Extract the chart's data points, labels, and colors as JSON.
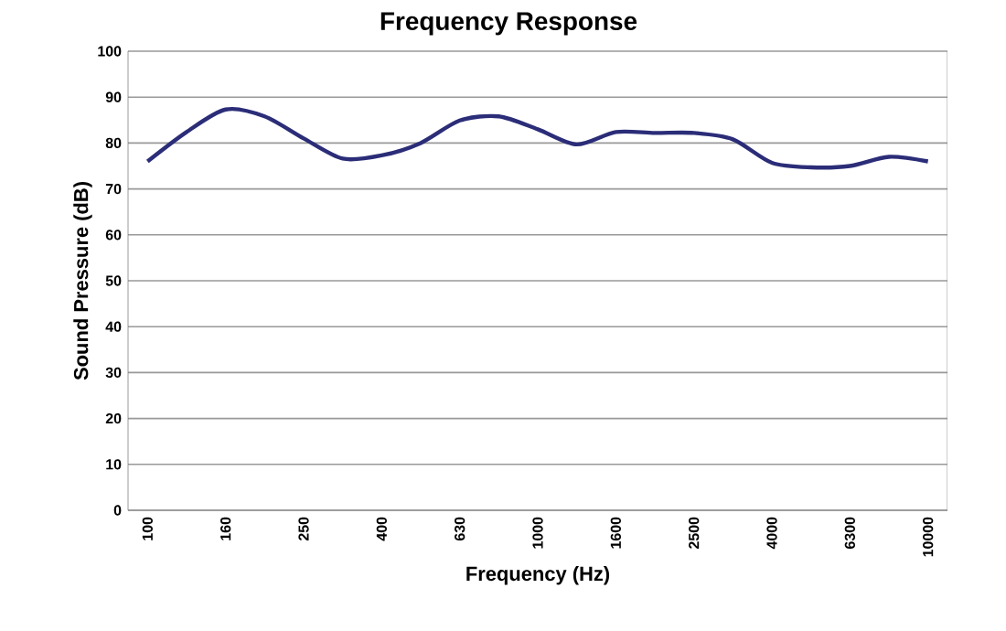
{
  "chart_data": {
    "type": "line",
    "title": "Frequency Response",
    "xlabel": "Frequency (Hz)",
    "ylabel": "Sound Pressure (dB)",
    "categories": [
      "100",
      null,
      "160",
      null,
      "250",
      null,
      "400",
      null,
      "630",
      null,
      "1000",
      null,
      "1600",
      null,
      "2500",
      null,
      "4000",
      null,
      "6300",
      null,
      "10000"
    ],
    "series": [
      {
        "color": "#2b2d78",
        "values": [
          76.0,
          82.4,
          87.3,
          85.8,
          81.0,
          76.6,
          77.3,
          80.0,
          84.9,
          85.8,
          83.0,
          79.7,
          82.4,
          82.2,
          82.2,
          80.8,
          75.7,
          74.7,
          75.0,
          77.0,
          76.0
        ]
      }
    ],
    "ylim": [
      0,
      100
    ],
    "yticks": [
      0,
      10,
      20,
      30,
      40,
      50,
      60,
      70,
      80,
      90,
      100
    ],
    "grid": "y",
    "marker": "none",
    "line_style": "solid"
  }
}
